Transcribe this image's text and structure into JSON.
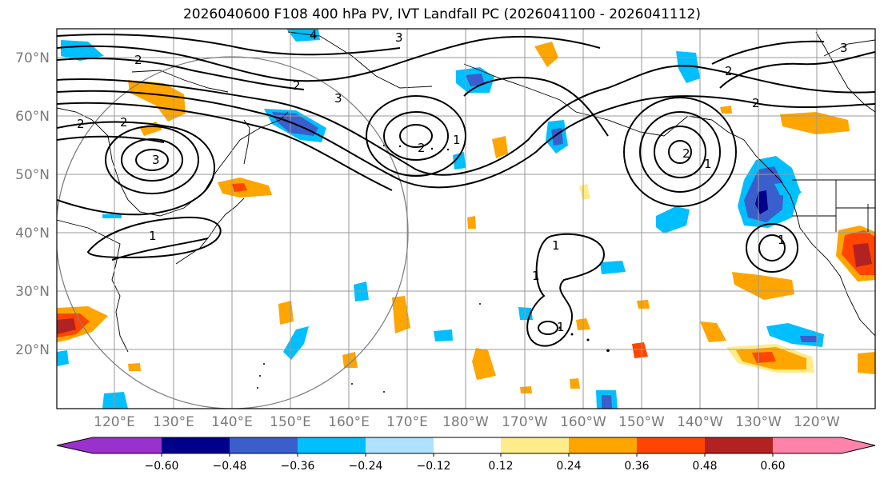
{
  "title": "2026040600 F108 400 hPa PV, IVT Landfall PC (2026041100 - 2026041112)",
  "lat_labels": [
    "70°N",
    "60°N",
    "50°N",
    "40°N",
    "30°N",
    "20°N"
  ],
  "lon_labels": [
    "120°E",
    "130°E",
    "140°E",
    "150°E",
    "160°E",
    "170°E",
    "180°W",
    "170°W",
    "160°W",
    "150°W",
    "140°W",
    "130°W",
    "120°W"
  ],
  "contour_labels": [
    "1",
    "2",
    "3",
    "4"
  ],
  "colorbar": {
    "ticks": [
      "−0.60",
      "−0.48",
      "−0.36",
      "−0.24",
      "−0.12",
      "0.12",
      "0.24",
      "0.36",
      "0.48",
      "0.60"
    ],
    "colors": [
      "#9932cc",
      "#00008b",
      "#3a5fcd",
      "#00bfff",
      "#b0e2ff",
      "#ffffff",
      "#ffec8b",
      "#ffa500",
      "#ff4500",
      "#b22222",
      "#ff82ab"
    ]
  },
  "chart_data": {
    "type": "map",
    "title": "2026040600 F108 400 hPa PV, IVT Landfall PC (2026041100 - 2026041112)",
    "projection": "PlateCarree",
    "extent": {
      "lon_min": 110,
      "lon_max": 250,
      "lat_min": 10,
      "lat_max": 75
    },
    "grid_spacing_deg": 10,
    "filled_field": "IVT Landfall PC",
    "contour_field": "400 hPa PV",
    "contour_levels": [
      1,
      2,
      3,
      4
    ],
    "color_levels": [
      -0.6,
      -0.48,
      -0.36,
      -0.24,
      -0.12,
      0.12,
      0.24,
      0.36,
      0.48,
      0.6
    ],
    "colorbar_extend": "both",
    "range_circle": {
      "center_lat": 40,
      "center_lon": 140
    }
  }
}
